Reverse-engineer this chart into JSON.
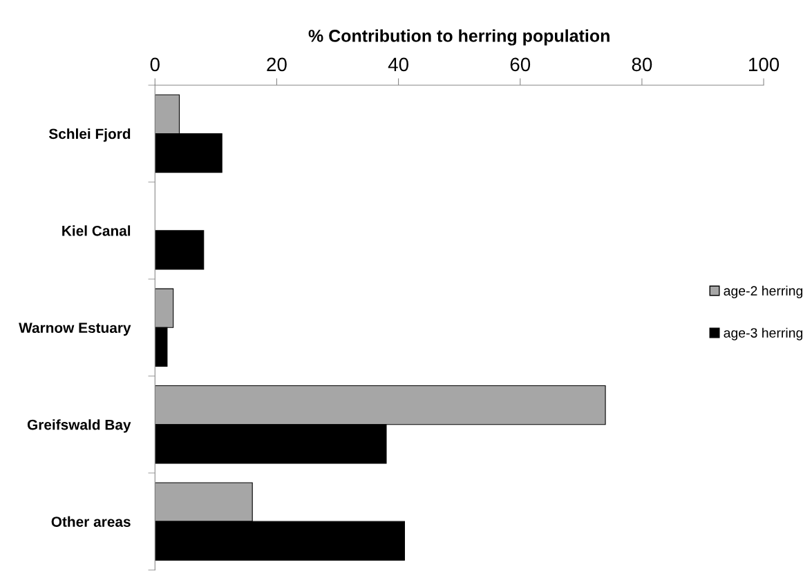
{
  "chart_data": {
    "type": "bar",
    "orientation": "horizontal",
    "xlabel": "% Contribution to herring population",
    "categories": [
      "Schlei Fjord",
      "Kiel Canal",
      "Warnow Estuary",
      "Greifswald Bay",
      "Other areas"
    ],
    "series": [
      {
        "name": "age-2 herring",
        "color": "#a6a6a6",
        "values": [
          4,
          null,
          3,
          74,
          16
        ]
      },
      {
        "name": "age-3 herring",
        "color": "#000000",
        "values": [
          11,
          8,
          2,
          38,
          41
        ]
      }
    ],
    "xlim": [
      0,
      100
    ],
    "xticks": [
      0,
      20,
      40,
      60,
      80,
      100
    ],
    "grid": false,
    "legend": "right"
  }
}
